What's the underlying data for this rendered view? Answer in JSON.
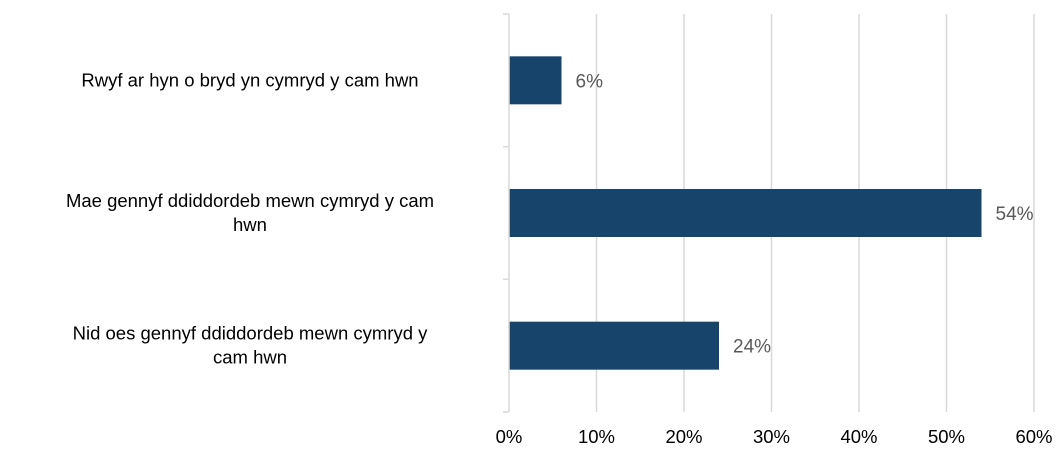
{
  "chart_data": {
    "type": "bar",
    "orientation": "horizontal",
    "title": "",
    "xlabel": "",
    "ylabel": "",
    "categories": [
      [
        "Rwyf ar hyn o bryd yn cymryd y cam hwn"
      ],
      [
        "Mae gennyf ddiddordeb mewn cymryd y cam",
        "hwn"
      ],
      [
        "Nid oes gennyf ddiddordeb mewn cymryd y",
        "cam hwn"
      ]
    ],
    "values": [
      6,
      54,
      24
    ],
    "data_labels": [
      "6%",
      "54%",
      "24%"
    ],
    "xlim": [
      0,
      60
    ],
    "x_ticks": [
      0,
      10,
      20,
      30,
      40,
      50,
      60
    ],
    "x_tick_labels": [
      "0%",
      "10%",
      "20%",
      "30%",
      "40%",
      "50%",
      "60%"
    ],
    "bar_color": "#17446B",
    "gridline_color": "#D9D9D9",
    "grid": true,
    "legend": "none"
  }
}
